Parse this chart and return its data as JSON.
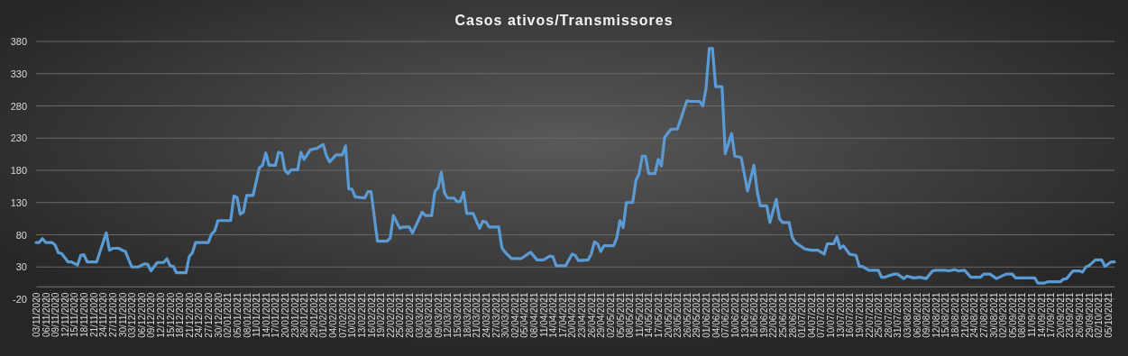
{
  "chart_data": {
    "type": "line",
    "title": "Casos  ativos/Transmissores",
    "grid": "y",
    "marker": "none",
    "line_style": "solid",
    "ylim": [
      -20,
      380
    ],
    "yticks": [
      -20,
      30,
      80,
      130,
      180,
      230,
      280,
      330,
      380
    ],
    "xlim": [
      "2020-11-03",
      "2021-10-07"
    ],
    "xticks": [
      {
        "value": "2020-11-03",
        "label": "03/11/2020"
      },
      {
        "value": "2020-11-06",
        "label": "06/11/2020"
      },
      {
        "value": "2020-11-09",
        "label": "09/11/2020"
      },
      {
        "value": "2020-11-12",
        "label": "12/11/2020"
      },
      {
        "value": "2020-11-15",
        "label": "15/11/2020"
      },
      {
        "value": "2020-11-18",
        "label": "18/11/2020"
      },
      {
        "value": "2020-11-21",
        "label": "21/11/2020"
      },
      {
        "value": "2020-11-24",
        "label": "24/11/2020"
      },
      {
        "value": "2020-11-27",
        "label": "27/11/2020"
      },
      {
        "value": "2020-11-30",
        "label": "30/11/2020"
      },
      {
        "value": "2020-12-03",
        "label": "03/12/2020"
      },
      {
        "value": "2020-12-06",
        "label": "06/12/2020"
      },
      {
        "value": "2020-12-09",
        "label": "09/12/2020"
      },
      {
        "value": "2020-12-12",
        "label": "12/12/2020"
      },
      {
        "value": "2020-12-15",
        "label": "15/12/2020"
      },
      {
        "value": "2020-12-18",
        "label": "18/12/2020"
      },
      {
        "value": "2020-12-21",
        "label": "21/12/2020"
      },
      {
        "value": "2020-12-24",
        "label": "24/12/2020"
      },
      {
        "value": "2020-12-27",
        "label": "27/12/2020"
      },
      {
        "value": "2020-12-30",
        "label": "30/12/2020"
      },
      {
        "value": "2021-01-02",
        "label": "02/01/2021"
      },
      {
        "value": "2021-01-05",
        "label": "05/01/2021"
      },
      {
        "value": "2021-01-08",
        "label": "08/01/2021"
      },
      {
        "value": "2021-01-11",
        "label": "11/01/2021"
      },
      {
        "value": "2021-01-14",
        "label": "14/01/2021"
      },
      {
        "value": "2021-01-17",
        "label": "17/01/2021"
      },
      {
        "value": "2021-01-20",
        "label": "20/01/2021"
      },
      {
        "value": "2021-01-23",
        "label": "23/01/2021"
      },
      {
        "value": "2021-01-26",
        "label": "26/01/2021"
      },
      {
        "value": "2021-01-29",
        "label": "29/01/2021"
      },
      {
        "value": "2021-02-01",
        "label": "01/02/2021"
      },
      {
        "value": "2021-02-04",
        "label": "04/02/2021"
      },
      {
        "value": "2021-02-07",
        "label": "07/02/2021"
      },
      {
        "value": "2021-02-10",
        "label": "10/02/2021"
      },
      {
        "value": "2021-02-13",
        "label": "13/02/2021"
      },
      {
        "value": "2021-02-16",
        "label": "16/02/2021"
      },
      {
        "value": "2021-02-19",
        "label": "19/02/2021"
      },
      {
        "value": "2021-02-22",
        "label": "22/02/2021"
      },
      {
        "value": "2021-02-25",
        "label": "25/02/2021"
      },
      {
        "value": "2021-02-28",
        "label": "28/02/2021"
      },
      {
        "value": "2021-03-03",
        "label": "03/03/2021"
      },
      {
        "value": "2021-03-06",
        "label": "06/03/2021"
      },
      {
        "value": "2021-03-09",
        "label": "09/03/2021"
      },
      {
        "value": "2021-03-12",
        "label": "12/03/2021"
      },
      {
        "value": "2021-03-15",
        "label": "15/03/2021"
      },
      {
        "value": "2021-03-18",
        "label": "18/03/2021"
      },
      {
        "value": "2021-03-21",
        "label": "21/03/2021"
      },
      {
        "value": "2021-03-24",
        "label": "24/03/2021"
      },
      {
        "value": "2021-03-27",
        "label": "27/03/2021"
      },
      {
        "value": "2021-03-30",
        "label": "30/03/2021"
      },
      {
        "value": "2021-04-02",
        "label": "02/04/2021"
      },
      {
        "value": "2021-04-05",
        "label": "05/04/2021"
      },
      {
        "value": "2021-04-08",
        "label": "08/04/2021"
      },
      {
        "value": "2021-04-11",
        "label": "11/04/2021"
      },
      {
        "value": "2021-04-14",
        "label": "14/04/2021"
      },
      {
        "value": "2021-04-17",
        "label": "17/04/2021"
      },
      {
        "value": "2021-04-20",
        "label": "20/04/2021"
      },
      {
        "value": "2021-04-23",
        "label": "23/04/2021"
      },
      {
        "value": "2021-04-26",
        "label": "26/04/2021"
      },
      {
        "value": "2021-04-29",
        "label": "29/04/2021"
      },
      {
        "value": "2021-05-02",
        "label": "02/05/2021"
      },
      {
        "value": "2021-05-05",
        "label": "05/05/2021"
      },
      {
        "value": "2021-05-08",
        "label": "08/05/2021"
      },
      {
        "value": "2021-05-11",
        "label": "11/05/2021"
      },
      {
        "value": "2021-05-14",
        "label": "14/05/2021"
      },
      {
        "value": "2021-05-17",
        "label": "17/05/2021"
      },
      {
        "value": "2021-05-20",
        "label": "20/05/2021"
      },
      {
        "value": "2021-05-23",
        "label": "23/05/2021"
      },
      {
        "value": "2021-05-26",
        "label": "26/05/2021"
      },
      {
        "value": "2021-05-29",
        "label": "29/05/2021"
      },
      {
        "value": "2021-06-01",
        "label": "01/06/2021"
      },
      {
        "value": "2021-06-04",
        "label": "04/06/2021"
      },
      {
        "value": "2021-06-07",
        "label": "07/06/2021"
      },
      {
        "value": "2021-06-10",
        "label": "10/06/2021"
      },
      {
        "value": "2021-06-13",
        "label": "13/06/2021"
      },
      {
        "value": "2021-06-16",
        "label": "16/06/2021"
      },
      {
        "value": "2021-06-19",
        "label": "19/06/2021"
      },
      {
        "value": "2021-06-22",
        "label": "22/06/2021"
      },
      {
        "value": "2021-06-25",
        "label": "25/06/2021"
      },
      {
        "value": "2021-06-28",
        "label": "28/06/2021"
      },
      {
        "value": "2021-07-01",
        "label": "01/07/2021"
      },
      {
        "value": "2021-07-04",
        "label": "04/07/2021"
      },
      {
        "value": "2021-07-07",
        "label": "07/07/2021"
      },
      {
        "value": "2021-07-10",
        "label": "10/07/2021"
      },
      {
        "value": "2021-07-13",
        "label": "13/07/2021"
      },
      {
        "value": "2021-07-16",
        "label": "16/07/2021"
      },
      {
        "value": "2021-07-19",
        "label": "19/07/2021"
      },
      {
        "value": "2021-07-22",
        "label": "22/07/2021"
      },
      {
        "value": "2021-07-25",
        "label": "25/07/2021"
      },
      {
        "value": "2021-07-28",
        "label": "28/07/2021"
      },
      {
        "value": "2021-07-31",
        "label": "31/07/2021"
      },
      {
        "value": "2021-08-03",
        "label": "03/08/2021"
      },
      {
        "value": "2021-08-06",
        "label": "06/08/2021"
      },
      {
        "value": "2021-08-09",
        "label": "09/08/2021"
      },
      {
        "value": "2021-08-12",
        "label": "12/08/2021"
      },
      {
        "value": "2021-08-15",
        "label": "15/08/2021"
      },
      {
        "value": "2021-08-18",
        "label": "18/08/2021"
      },
      {
        "value": "2021-08-21",
        "label": "21/08/2021"
      },
      {
        "value": "2021-08-24",
        "label": "24/08/2021"
      },
      {
        "value": "2021-08-27",
        "label": "27/08/2021"
      },
      {
        "value": "2021-08-30",
        "label": "30/08/2021"
      },
      {
        "value": "2021-09-02",
        "label": "02/09/2021"
      },
      {
        "value": "2021-09-05",
        "label": "05/09/2021"
      },
      {
        "value": "2021-09-08",
        "label": "08/09/2021"
      },
      {
        "value": "2021-09-11",
        "label": "11/09/2021"
      },
      {
        "value": "2021-09-14",
        "label": "14/09/2021"
      },
      {
        "value": "2021-09-17",
        "label": "17/09/2021"
      },
      {
        "value": "2021-09-20",
        "label": "20/09/2021"
      },
      {
        "value": "2021-09-23",
        "label": "23/09/2021"
      },
      {
        "value": "2021-09-26",
        "label": "26/09/2021"
      },
      {
        "value": "2021-09-29",
        "label": "29/09/2021"
      },
      {
        "value": "2021-10-02",
        "label": "02/10/2021"
      },
      {
        "value": "2021-10-05",
        "label": "05/10/2021"
      }
    ],
    "series": [
      {
        "color": "#5b9bd5",
        "x": [
          "2020-11-03",
          "2020-11-04",
          "2020-11-05",
          "2020-11-06",
          "2020-11-08",
          "2020-11-09",
          "2020-11-10",
          "2020-11-11",
          "2020-11-13",
          "2020-11-14",
          "2020-11-16",
          "2020-11-17",
          "2020-11-18",
          "2020-11-19",
          "2020-11-22",
          "2020-11-25",
          "2020-11-26",
          "2020-11-27",
          "2020-11-29",
          "2020-11-30",
          "2020-12-01",
          "2020-12-03",
          "2020-12-05",
          "2020-12-07",
          "2020-12-08",
          "2020-12-09",
          "2020-12-11",
          "2020-12-13",
          "2020-12-14",
          "2020-12-15",
          "2020-12-16",
          "2020-12-17",
          "2020-12-20",
          "2020-12-21",
          "2020-12-22",
          "2020-12-23",
          "2020-12-27",
          "2020-12-28",
          "2020-12-29",
          "2020-12-30",
          "2021-01-03",
          "2021-01-04",
          "2021-01-05",
          "2021-01-06",
          "2021-01-07",
          "2021-01-08",
          "2021-01-10",
          "2021-01-12",
          "2021-01-13",
          "2021-01-14",
          "2021-01-15",
          "2021-01-17",
          "2021-01-18",
          "2021-01-19",
          "2021-01-20",
          "2021-01-21",
          "2021-01-22",
          "2021-01-24",
          "2021-01-25",
          "2021-01-26",
          "2021-01-28",
          "2021-01-30",
          "2021-02-01",
          "2021-02-02",
          "2021-02-03",
          "2021-02-05",
          "2021-02-07",
          "2021-02-08",
          "2021-02-09",
          "2021-02-10",
          "2021-02-11",
          "2021-02-14",
          "2021-02-15",
          "2021-02-16",
          "2021-02-18",
          "2021-02-21",
          "2021-02-22",
          "2021-02-23",
          "2021-02-25",
          "2021-02-26",
          "2021-02-28",
          "2021-03-01",
          "2021-03-04",
          "2021-03-05",
          "2021-03-07",
          "2021-03-08",
          "2021-03-09",
          "2021-03-10",
          "2021-03-11",
          "2021-03-12",
          "2021-03-14",
          "2021-03-15",
          "2021-03-16",
          "2021-03-17",
          "2021-03-18",
          "2021-03-20",
          "2021-03-22",
          "2021-03-23",
          "2021-03-24",
          "2021-03-25",
          "2021-03-28",
          "2021-03-29",
          "2021-03-30",
          "2021-04-01",
          "2021-04-04",
          "2021-04-07",
          "2021-04-09",
          "2021-04-11",
          "2021-04-13",
          "2021-04-14",
          "2021-04-15",
          "2021-04-18",
          "2021-04-20",
          "2021-04-21",
          "2021-04-22",
          "2021-04-25",
          "2021-04-26",
          "2021-04-27",
          "2021-04-28",
          "2021-04-29",
          "2021-04-30",
          "2021-05-03",
          "2021-05-04",
          "2021-05-05",
          "2021-05-06",
          "2021-05-07",
          "2021-05-09",
          "2021-05-10",
          "2021-05-11",
          "2021-05-12",
          "2021-05-13",
          "2021-05-14",
          "2021-05-16",
          "2021-05-17",
          "2021-05-18",
          "2021-05-19",
          "2021-05-21",
          "2021-05-23",
          "2021-05-26",
          "2021-05-27",
          "2021-05-30",
          "2021-05-31",
          "2021-06-01",
          "2021-06-02",
          "2021-06-03",
          "2021-06-04",
          "2021-06-06",
          "2021-06-07",
          "2021-06-09",
          "2021-06-10",
          "2021-06-12",
          "2021-06-14",
          "2021-06-16",
          "2021-06-17",
          "2021-06-18",
          "2021-06-20",
          "2021-06-21",
          "2021-06-23",
          "2021-06-24",
          "2021-06-25",
          "2021-06-27",
          "2021-06-28",
          "2021-06-29",
          "2021-07-02",
          "2021-07-04",
          "2021-07-06",
          "2021-07-08",
          "2021-07-09",
          "2021-07-11",
          "2021-07-12",
          "2021-07-13",
          "2021-07-14",
          "2021-07-16",
          "2021-07-18",
          "2021-07-19",
          "2021-07-20",
          "2021-07-22",
          "2021-07-25",
          "2021-07-26",
          "2021-07-27",
          "2021-07-28",
          "2021-07-30",
          "2021-07-31",
          "2021-08-02",
          "2021-08-03",
          "2021-08-05",
          "2021-08-07",
          "2021-08-09",
          "2021-08-11",
          "2021-08-12",
          "2021-08-15",
          "2021-08-16",
          "2021-08-18",
          "2021-08-19",
          "2021-08-21",
          "2021-08-23",
          "2021-08-26",
          "2021-08-27",
          "2021-08-29",
          "2021-08-31",
          "2021-09-03",
          "2021-09-05",
          "2021-09-06",
          "2021-09-12",
          "2021-09-13",
          "2021-09-15",
          "2021-09-16",
          "2021-09-20",
          "2021-09-21",
          "2021-09-22",
          "2021-09-24",
          "2021-09-26",
          "2021-09-27",
          "2021-09-28",
          "2021-09-29",
          "2021-10-01",
          "2021-10-03",
          "2021-10-04",
          "2021-10-06",
          "2021-10-07"
        ],
        "values": [
          68,
          68,
          74,
          68,
          68,
          64,
          52,
          51,
          38,
          38,
          33,
          48,
          49,
          38,
          38,
          83,
          56,
          59,
          59,
          56,
          54,
          30,
          30,
          35,
          34,
          24,
          37,
          37,
          43,
          32,
          31,
          21,
          21,
          46,
          52,
          68,
          68,
          81,
          86,
          102,
          102,
          140,
          138,
          112,
          115,
          141,
          141,
          184,
          188,
          207,
          188,
          188,
          208,
          207,
          180,
          175,
          181,
          181,
          208,
          197,
          212,
          214,
          220,
          203,
          193,
          204,
          204,
          218,
          151,
          151,
          139,
          137,
          147,
          147,
          70,
          70,
          75,
          110,
          90,
          92,
          92,
          83,
          115,
          110,
          110,
          147,
          153,
          177,
          145,
          137,
          137,
          131,
          132,
          146,
          113,
          113,
          90,
          101,
          100,
          92,
          92,
          60,
          53,
          43,
          43,
          53,
          41,
          41,
          47,
          46,
          32,
          32,
          50,
          48,
          40,
          41,
          50,
          69,
          66,
          54,
          63,
          63,
          75,
          102,
          91,
          130,
          130,
          164,
          175,
          202,
          202,
          175,
          175,
          197,
          187,
          231,
          244,
          244,
          288,
          287,
          287,
          280,
          308,
          369,
          369,
          310,
          310,
          206,
          237,
          202,
          200,
          148,
          188,
          148,
          125,
          125,
          99,
          135,
          105,
          99,
          99,
          76,
          68,
          58,
          56,
          56,
          50,
          66,
          66,
          77,
          59,
          63,
          50,
          48,
          31,
          31,
          25,
          25,
          14,
          14,
          16,
          19,
          19,
          12,
          16,
          13,
          14,
          12,
          24,
          25,
          25,
          24,
          26,
          24,
          25,
          14,
          14,
          19,
          19,
          12,
          19,
          19,
          13,
          13,
          5,
          5,
          7,
          7,
          11,
          12,
          24,
          24,
          22,
          30,
          32,
          41,
          41,
          31,
          38,
          38
        ]
      }
    ]
  }
}
